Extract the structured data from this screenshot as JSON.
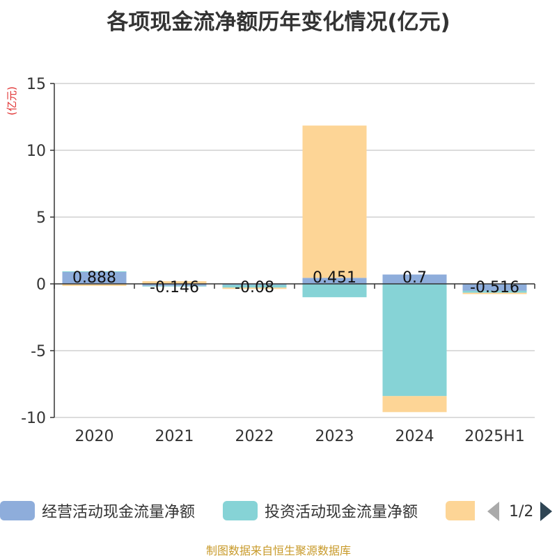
{
  "header": {
    "title": "各项现金流净额历年变化情况(亿元)"
  },
  "chart_data": {
    "type": "bar",
    "stacked": true,
    "ylabel": "(亿元)",
    "ylim": [
      -10,
      15
    ],
    "yticks": [
      15,
      10,
      5,
      0,
      -5,
      -10
    ],
    "grid": true,
    "categories": [
      "2020",
      "2021",
      "2022",
      "2023",
      "2024",
      "2025H1"
    ],
    "series": [
      {
        "name": "经营活动现金流量净额",
        "color": "#8eaddb",
        "values": [
          0.888,
          -0.146,
          -0.08,
          0.451,
          0.7,
          -0.516
        ],
        "labels": [
          "0.888",
          "-0.146",
          "-0.08",
          "0.451",
          "0.7",
          "-0.516"
        ]
      },
      {
        "name": "投资活动现金流量净额",
        "color": "#86d3d6",
        "values": [
          0.05,
          -0.05,
          -0.2,
          -1.0,
          -8.4,
          -0.15
        ]
      },
      {
        "name": "",
        "color": "#fdd596",
        "values": [
          -0.15,
          0.2,
          -0.1,
          11.4,
          -1.2,
          -0.1
        ]
      }
    ],
    "legend_position": "bottom"
  },
  "legend": {
    "page_indicator": "1/2"
  },
  "footer": {
    "source": "制图数据来自恒生聚源数据库"
  }
}
